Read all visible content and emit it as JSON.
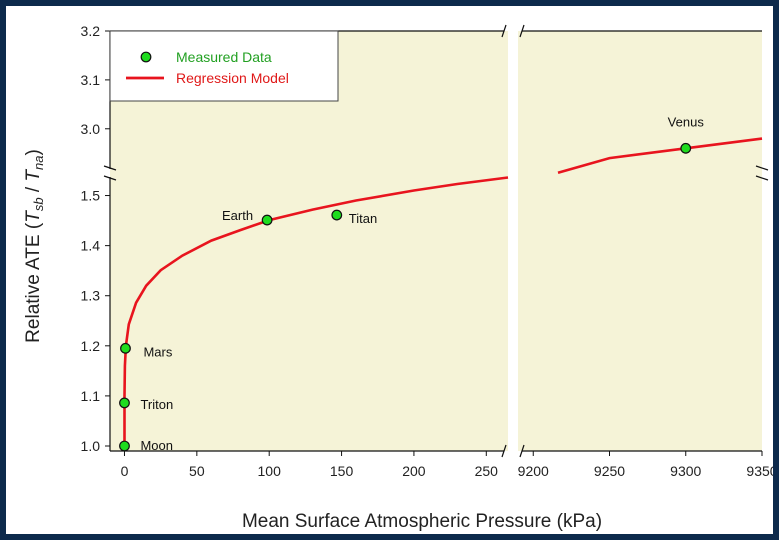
{
  "chart_data": {
    "type": "scatter",
    "xlabel": "Mean Surface Atmospheric Pressure (kPa)",
    "ylabel": "Relative ATE (T_sb / T_na)",
    "ylabel_parts": {
      "main": "Relative ATE (",
      "t1": "T",
      "s1": "sb",
      "mid": " / ",
      "t2": "T",
      "s2": "na",
      "end": ")"
    },
    "x_ranges": [
      [
        -10,
        265
      ],
      [
        9190,
        9350
      ]
    ],
    "y_ranges": [
      [
        0.99,
        1.545
      ],
      [
        2.93,
        3.2
      ]
    ],
    "x_ticks_left": [
      0,
      50,
      100,
      150,
      200,
      250
    ],
    "x_ticks_right": [
      9200,
      9250,
      9300,
      9350
    ],
    "y_ticks_low": [
      1.0,
      1.1,
      1.2,
      1.3,
      1.4,
      1.5
    ],
    "y_ticks_high": [
      3.0,
      3.1,
      3.2
    ],
    "legend": {
      "position": "top-left",
      "entries": [
        "Measured Data",
        "Regression Model"
      ]
    },
    "series": [
      {
        "name": "Measured Data",
        "points": [
          {
            "label": "Moon",
            "x": 0,
            "y": 1.0
          },
          {
            "label": "Triton",
            "x": 0.0014,
            "y": 1.086
          },
          {
            "label": "Mars",
            "x": 0.69,
            "y": 1.195
          },
          {
            "label": "Earth",
            "x": 98.55,
            "y": 1.451
          },
          {
            "label": "Titan",
            "x": 146.7,
            "y": 1.461
          },
          {
            "label": "Venus",
            "x": 9300,
            "y": 2.96
          }
        ]
      },
      {
        "name": "Regression Model",
        "curve": [
          {
            "x": 0,
            "y": 1.0
          },
          {
            "x": 0.05,
            "y": 1.1
          },
          {
            "x": 0.3,
            "y": 1.16
          },
          {
            "x": 1,
            "y": 1.2
          },
          {
            "x": 3,
            "y": 1.243
          },
          {
            "x": 8,
            "y": 1.286
          },
          {
            "x": 15,
            "y": 1.32
          },
          {
            "x": 25,
            "y": 1.351
          },
          {
            "x": 40,
            "y": 1.38
          },
          {
            "x": 60,
            "y": 1.41
          },
          {
            "x": 80,
            "y": 1.431
          },
          {
            "x": 100,
            "y": 1.451
          },
          {
            "x": 130,
            "y": 1.472
          },
          {
            "x": 160,
            "y": 1.49
          },
          {
            "x": 200,
            "y": 1.51
          },
          {
            "x": 230,
            "y": 1.523
          },
          {
            "x": 265,
            "y": 1.536
          }
        ],
        "curve_high": [
          {
            "x": 9190,
            "y": 2.91
          },
          {
            "x": 9250,
            "y": 2.94
          },
          {
            "x": 9300,
            "y": 2.96
          },
          {
            "x": 9350,
            "y": 2.98
          }
        ]
      }
    ],
    "colors": {
      "plot_bg": "#f5f3d7",
      "point": "#1edc1e",
      "curve": "#e8141e",
      "legend_point_text": "#22a022",
      "legend_curve_text": "#e01818"
    }
  }
}
